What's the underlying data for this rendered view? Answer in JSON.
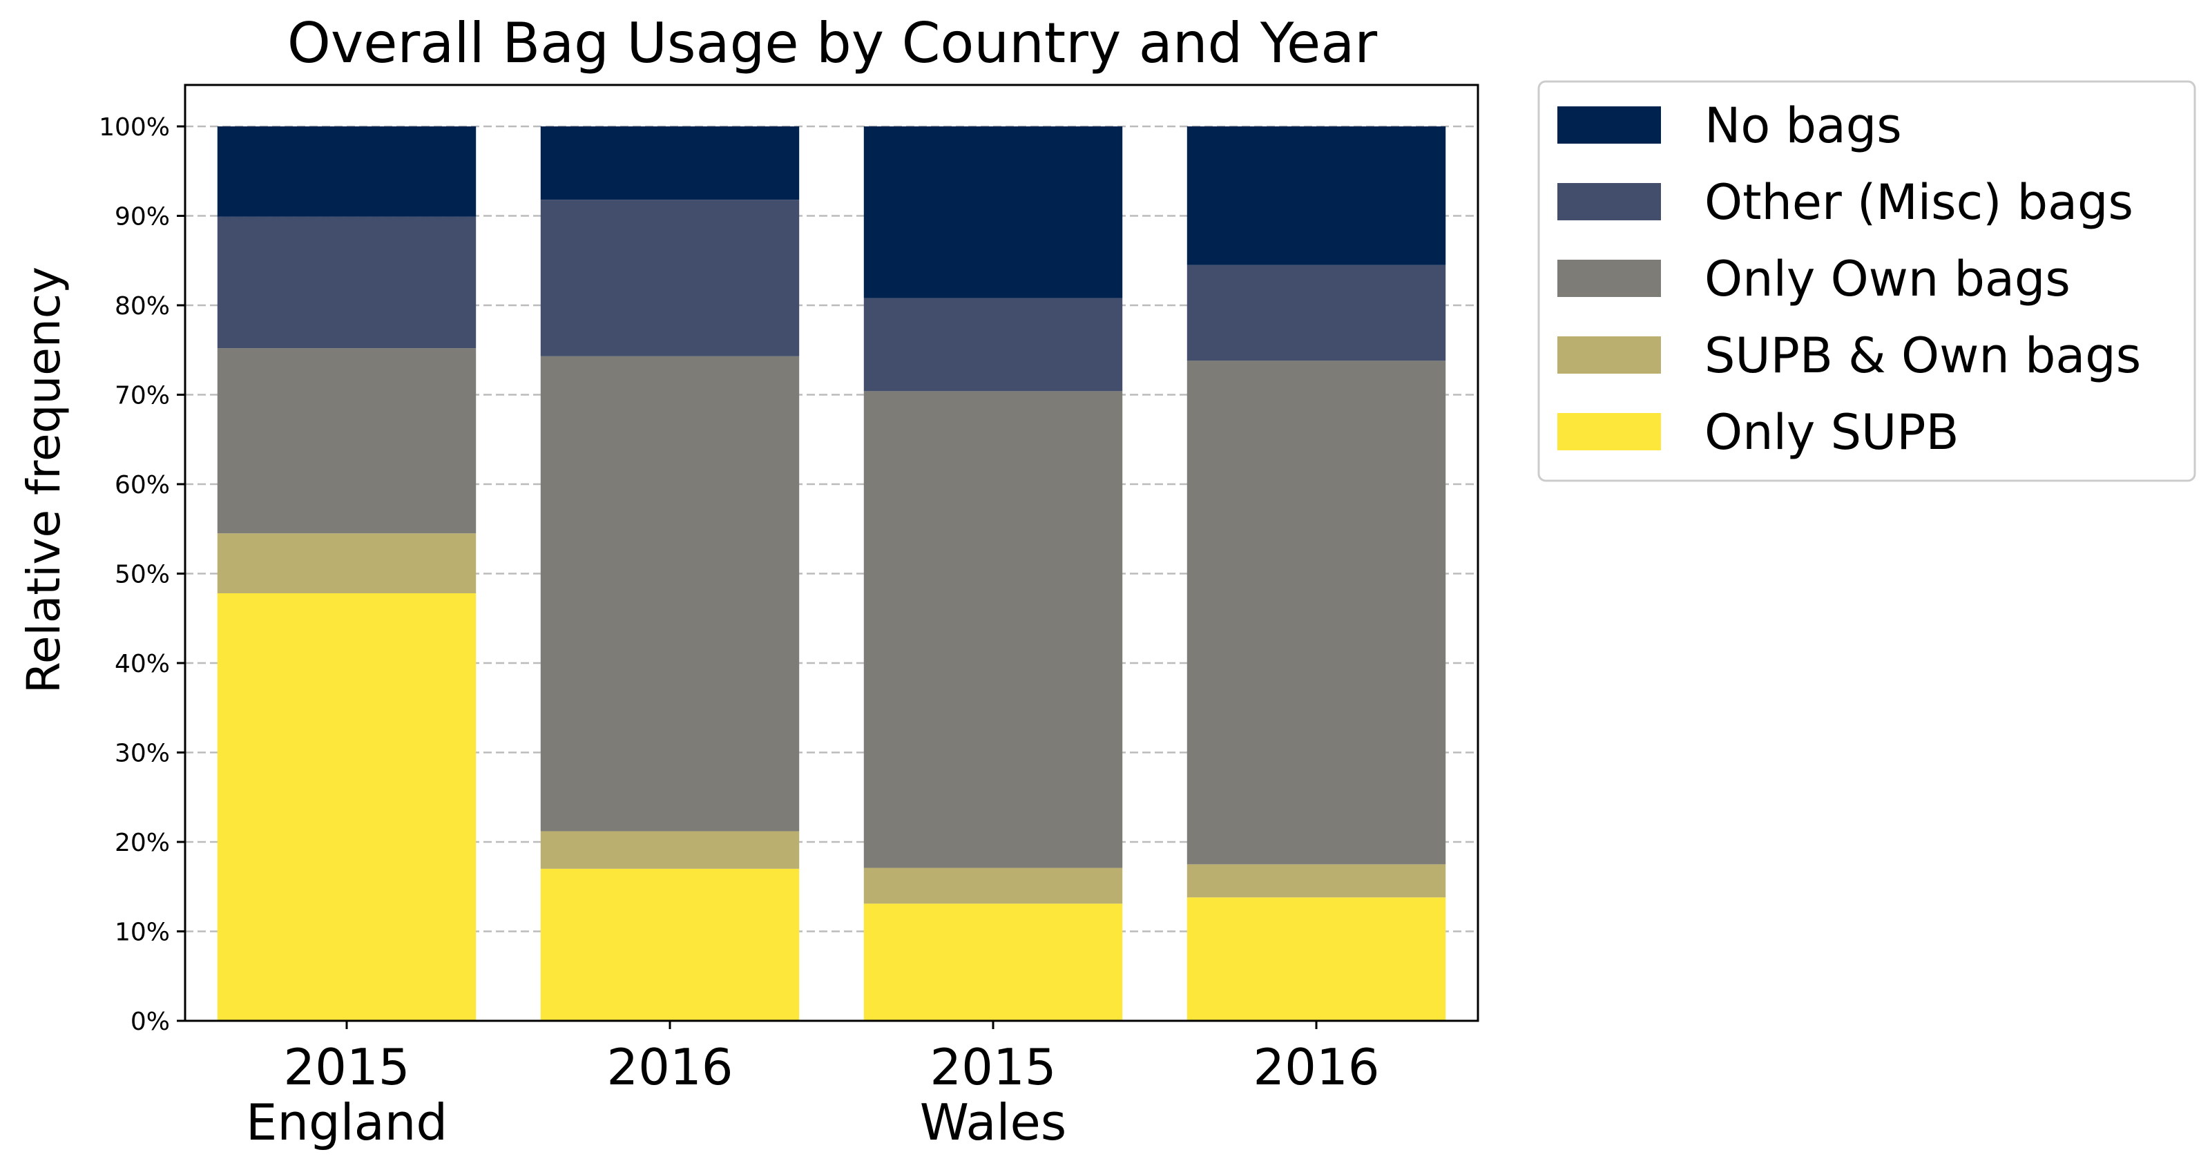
{
  "chart_data": {
    "type": "bar",
    "stacked": true,
    "title": "Overall Bag Usage by Country and Year",
    "ylabel": "Relative frequency",
    "xlabel": "",
    "ylim": [
      0,
      1
    ],
    "yticks": [
      "0%",
      "10%",
      "20%",
      "30%",
      "40%",
      "50%",
      "60%",
      "70%",
      "80%",
      "90%",
      "100%"
    ],
    "grid": "horizontal dashed",
    "legend_position": "outside-top-right",
    "categories": [
      "2015",
      "2016",
      "2015",
      "2016"
    ],
    "groups": [
      {
        "label": "England",
        "span": [
          0,
          1
        ]
      },
      {
        "label": "Wales",
        "span": [
          2,
          3
        ]
      }
    ],
    "series": [
      {
        "name": "Only SUPB",
        "color": "#fde73b",
        "values": [
          0.478,
          0.17,
          0.131,
          0.138
        ]
      },
      {
        "name": "SUPB & Own bags",
        "color": "#bbaf6f",
        "values": [
          0.067,
          0.042,
          0.04,
          0.037
        ]
      },
      {
        "name": "Only Own bags",
        "color": "#7d7c77",
        "values": [
          0.207,
          0.531,
          0.533,
          0.563
        ]
      },
      {
        "name": "Other (Misc) bags",
        "color": "#424e6b",
        "values": [
          0.147,
          0.175,
          0.104,
          0.107
        ]
      },
      {
        "name": "No bags",
        "color": "#00224e",
        "values": [
          0.101,
          0.082,
          0.192,
          0.155
        ]
      }
    ]
  }
}
